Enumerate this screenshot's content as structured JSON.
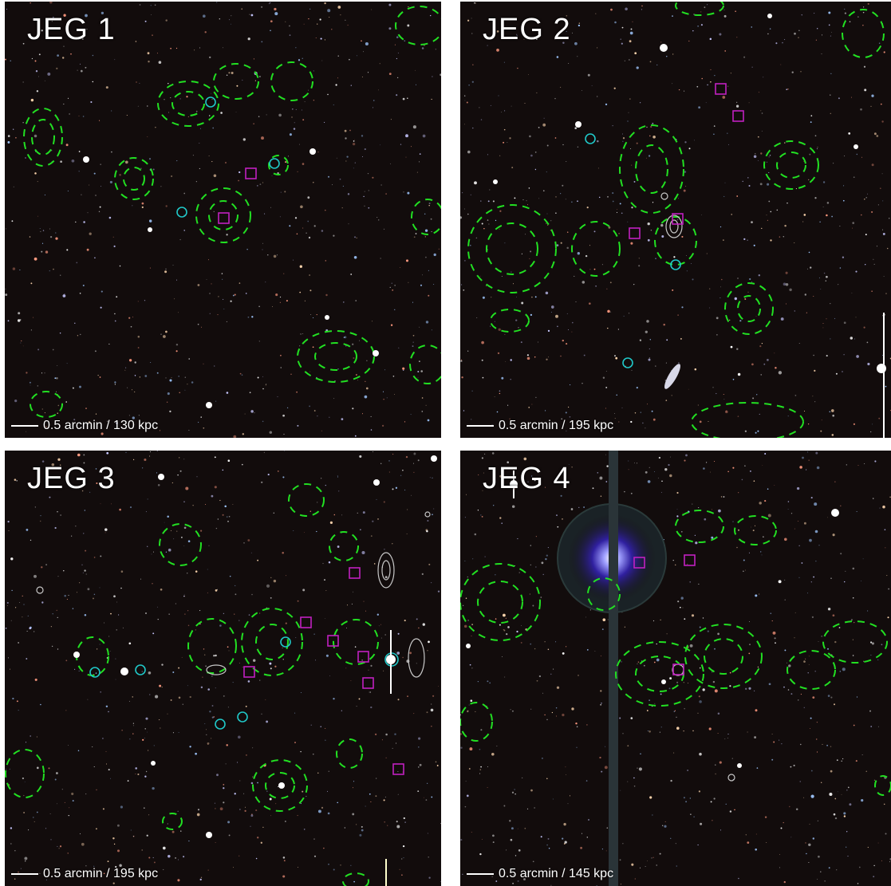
{
  "colors": {
    "background": "#120c0c",
    "lensing_contours": "#22e022",
    "xray_contours": "#c8c8c8",
    "cyan_circle_markers": "#20c8c8",
    "magenta_square_markers": "#c020c0"
  },
  "panels": [
    {
      "title": "JEG 1",
      "scale_label": "0.5 arcmin / 130 kpc"
    },
    {
      "title": "JEG 2",
      "scale_label": "0.5 arcmin / 195 kpc"
    },
    {
      "title": "JEG 3",
      "scale_label": "0.5 arcmin / 195 kpc"
    },
    {
      "title": "JEG 4",
      "scale_label": "0.5 arcmin / 145 kpc"
    }
  ]
}
